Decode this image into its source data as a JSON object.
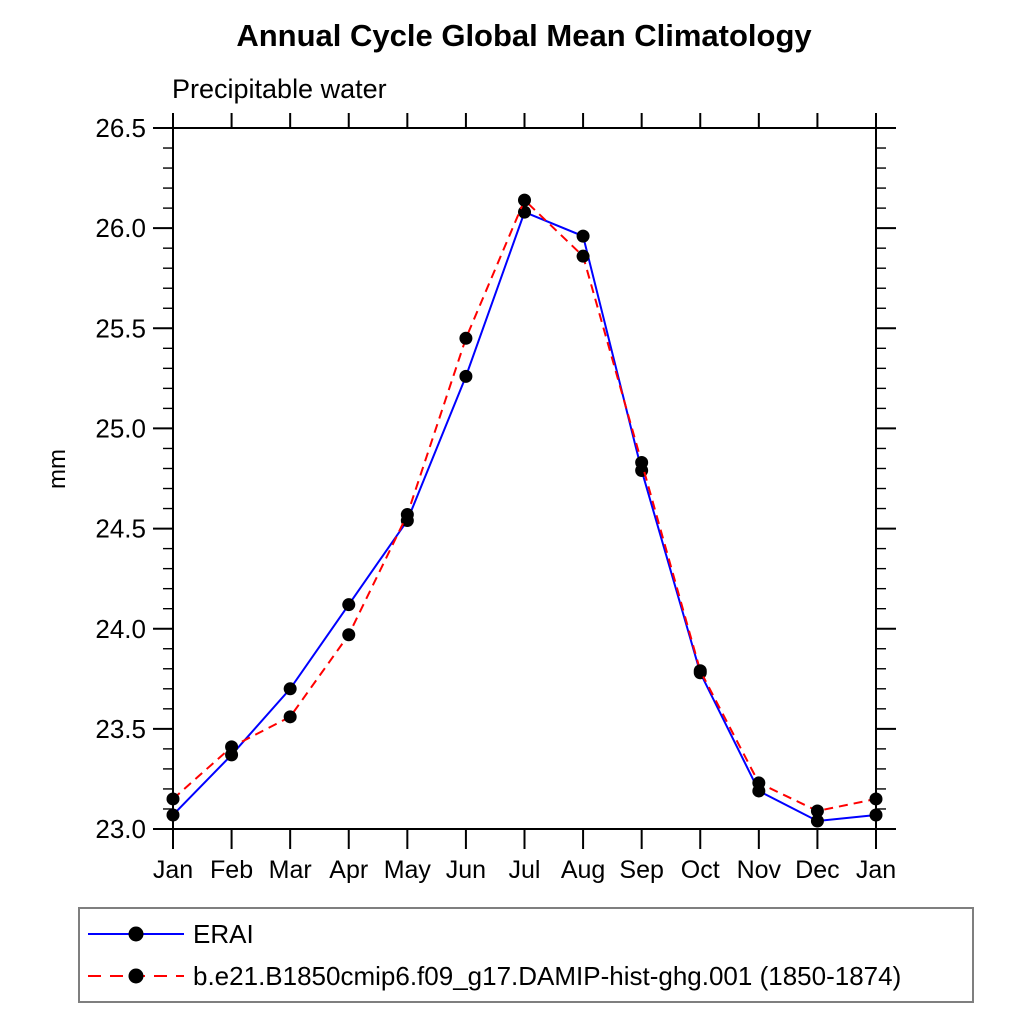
{
  "title": "Annual Cycle Global Mean Climatology",
  "subtitle": "Precipitable water",
  "ylabel": "mm",
  "legend": {
    "entries": [
      {
        "label": "ERAI"
      },
      {
        "label": "b.e21.B1850cmip6.f09_g17.DAMIP-hist-ghg.001 (1850-1874)"
      }
    ]
  },
  "chart_data": {
    "type": "line",
    "title": "Annual Cycle Global Mean Climatology",
    "subtitle": "Precipitable water",
    "ylabel": "mm",
    "xlabel": "",
    "categories": [
      "Jan",
      "Feb",
      "Mar",
      "Apr",
      "May",
      "Jun",
      "Jul",
      "Aug",
      "Sep",
      "Oct",
      "Nov",
      "Dec",
      "Jan"
    ],
    "series": [
      {
        "name": "ERAI",
        "line_color": "#0000ff",
        "line_style": "solid",
        "marker": "circle",
        "marker_color": "#000000",
        "values": [
          23.07,
          23.37,
          23.7,
          24.12,
          24.54,
          25.26,
          26.08,
          25.96,
          24.79,
          23.78,
          23.19,
          23.04,
          23.07
        ]
      },
      {
        "name": "b.e21.B1850cmip6.f09_g17.DAMIP-hist-ghg.001 (1850-1874)",
        "line_color": "#ff0000",
        "line_style": "dashed",
        "marker": "circle",
        "marker_color": "#000000",
        "values": [
          23.15,
          23.41,
          23.56,
          23.97,
          24.57,
          25.45,
          26.14,
          25.86,
          24.83,
          23.79,
          23.23,
          23.09,
          23.15
        ]
      }
    ],
    "ylim": [
      23.0,
      26.5
    ],
    "y_major_step": 0.5,
    "y_minor_step": 0.1,
    "y_tick_labels": [
      "23.0",
      "23.5",
      "24.0",
      "24.5",
      "25.0",
      "25.5",
      "26.0",
      "26.5"
    ],
    "grid": false,
    "legend_position": "bottom",
    "axis_color": "#000000"
  }
}
